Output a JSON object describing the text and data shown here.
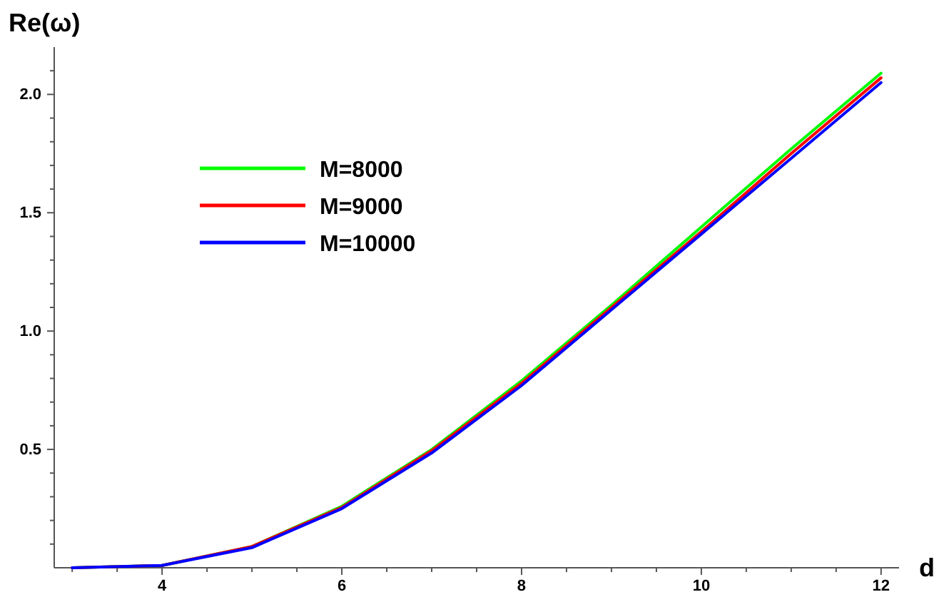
{
  "chart_data": {
    "type": "line",
    "xlabel": "d",
    "ylabel": "Re(ω)",
    "x": [
      3,
      4,
      5,
      6,
      7,
      8,
      9,
      10,
      11,
      12
    ],
    "series": [
      {
        "name": "M=8000",
        "color": "#00ff00",
        "values": [
          0,
          0.01,
          0.09,
          0.26,
          0.5,
          0.79,
          1.11,
          1.44,
          1.77,
          2.09
        ]
      },
      {
        "name": "M=9000",
        "color": "#ff0000",
        "values": [
          0,
          0.01,
          0.09,
          0.255,
          0.495,
          0.78,
          1.1,
          1.42,
          1.75,
          2.07
        ]
      },
      {
        "name": "M=10000",
        "color": "#0000ff",
        "values": [
          0,
          0.01,
          0.085,
          0.25,
          0.485,
          0.77,
          1.09,
          1.41,
          1.73,
          2.05
        ]
      }
    ],
    "xlim": [
      2.8,
      12.2
    ],
    "xticks": [
      {
        "value": 3,
        "label": null
      },
      {
        "value": 3.5,
        "label": null
      },
      4,
      {
        "value": 4.5,
        "label": null
      },
      {
        "value": 5,
        "label": null
      },
      {
        "value": 5.5,
        "label": null
      },
      6,
      {
        "value": 6.5,
        "label": null
      },
      {
        "value": 7,
        "label": null
      },
      {
        "value": 7.5,
        "label": null
      },
      8,
      {
        "value": 8.5,
        "label": null
      },
      {
        "value": 9,
        "label": null
      },
      {
        "value": 9.5,
        "label": null
      },
      10,
      {
        "value": 10.5,
        "label": null
      },
      {
        "value": 11,
        "label": null
      },
      {
        "value": 11.5,
        "label": null
      },
      12
    ],
    "ylim": [
      0,
      2.2
    ],
    "yticks": [
      {
        "value": 0.1,
        "label": null
      },
      {
        "value": 0.2,
        "label": null
      },
      {
        "value": 0.3,
        "label": null
      },
      {
        "value": 0.4,
        "label": null
      },
      {
        "value": 0.5,
        "label": "0.5"
      },
      {
        "value": 0.6,
        "label": null
      },
      {
        "value": 0.7,
        "label": null
      },
      {
        "value": 0.8,
        "label": null
      },
      {
        "value": 0.9,
        "label": null
      },
      {
        "value": 1,
        "label": "1.0"
      },
      {
        "value": 1.1,
        "label": null
      },
      {
        "value": 1.2,
        "label": null
      },
      {
        "value": 1.3,
        "label": null
      },
      {
        "value": 1.4,
        "label": null
      },
      {
        "value": 1.5,
        "label": "1.5"
      },
      {
        "value": 1.6,
        "label": null
      },
      {
        "value": 1.7,
        "label": null
      },
      {
        "value": 1.8,
        "label": null
      },
      {
        "value": 1.9,
        "label": null
      },
      {
        "value": 2,
        "label": "2.0"
      },
      {
        "value": 2.1,
        "label": null
      }
    ],
    "grid": false,
    "legend": "top left",
    "marker": "none",
    "line_style": "solid"
  }
}
